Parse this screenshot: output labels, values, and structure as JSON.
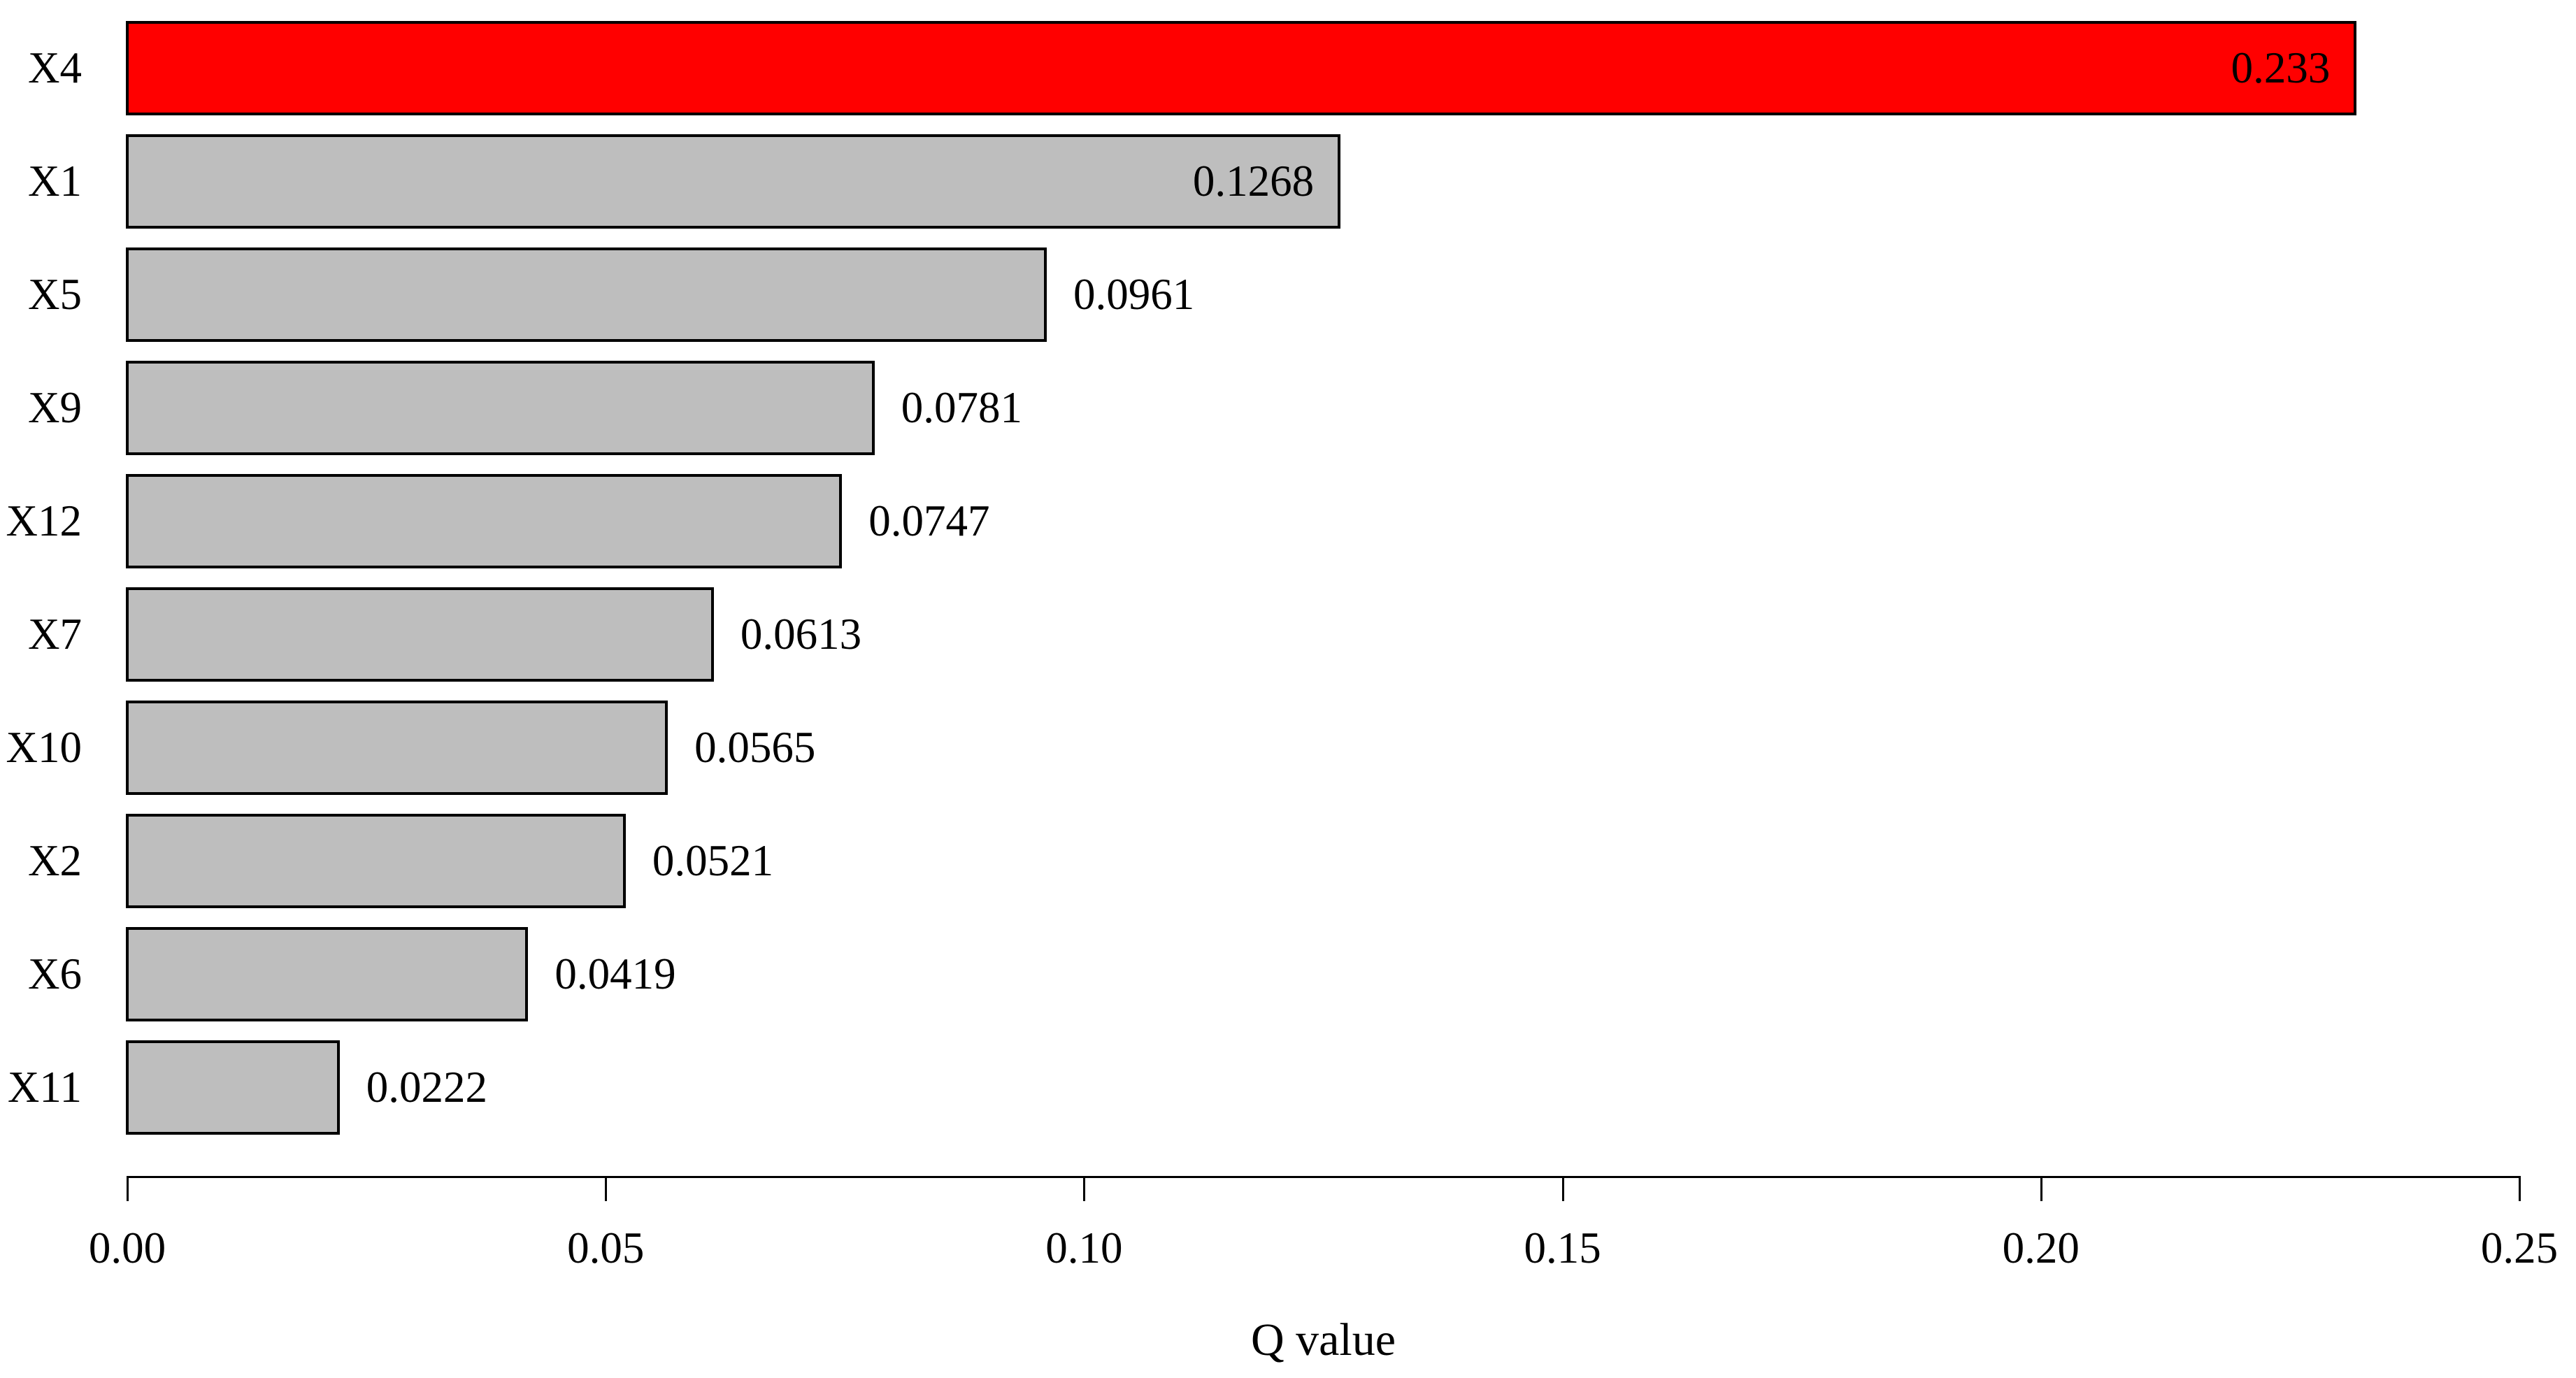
{
  "chart_data": {
    "type": "bar",
    "orientation": "horizontal",
    "title": "",
    "xlabel": "Q value",
    "ylabel": "",
    "xlim": [
      0,
      0.25
    ],
    "x_tick_labels": [
      "0.00",
      "0.05",
      "0.10",
      "0.15",
      "0.20",
      "0.25"
    ],
    "x_tick_values": [
      0,
      0.05,
      0.1,
      0.15,
      0.2,
      0.25
    ],
    "grid": false,
    "legend": null,
    "categories": [
      "X4",
      "X1",
      "X5",
      "X9",
      "X12",
      "X7",
      "X10",
      "X2",
      "X6",
      "X11"
    ],
    "values": [
      0.233,
      0.1268,
      0.0961,
      0.0781,
      0.0747,
      0.0613,
      0.0565,
      0.0521,
      0.0419,
      0.0222
    ],
    "value_labels": [
      "0.233",
      "0.1268",
      "0.0961",
      "0.0781",
      "0.0747",
      "0.0613",
      "0.0565",
      "0.0521",
      "0.0419",
      "0.0222"
    ],
    "label_placement": [
      "inside",
      "inside",
      "outside",
      "outside",
      "outside",
      "outside",
      "outside",
      "outside",
      "outside",
      "outside"
    ],
    "bar_colors": [
      "#ff0000",
      "#bebebe",
      "#bebebe",
      "#bebebe",
      "#bebebe",
      "#bebebe",
      "#bebebe",
      "#bebebe",
      "#bebebe",
      "#bebebe"
    ],
    "colors": {
      "highlight": "#ff0000",
      "bar_fill": "#bebebe",
      "bar_border": "#000000",
      "background": "#ffffff",
      "text": "#000000"
    }
  }
}
